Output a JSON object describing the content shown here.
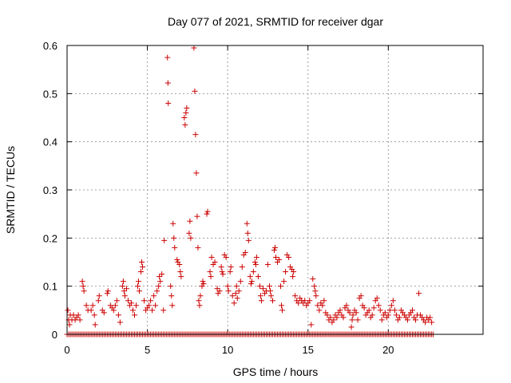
{
  "chart_data": {
    "type": "scatter",
    "title": "Day 077 of 2021, SRMTID for receiver dgar",
    "xlabel": "GPS time / hours",
    "ylabel": "SRMTID / TECUs",
    "xlim": [
      0,
      25.9
    ],
    "ylim": [
      0,
      0.6
    ],
    "xticks": [
      0,
      5,
      10,
      15,
      20
    ],
    "yticks": [
      0,
      0.1,
      0.2,
      0.3,
      0.4,
      0.5,
      0.6
    ],
    "xtick_labels": [
      "0",
      "5",
      "10",
      "15",
      "20"
    ],
    "ytick_labels": [
      "0",
      "0.1",
      "0.2",
      "0.3",
      "0.4",
      "0.5",
      "0.6"
    ],
    "grid": true,
    "marker": "+",
    "marker_color": "#cc0000",
    "baseline_zero": {
      "x_start": 0,
      "x_end": 22.8,
      "x_step": 0.1
    },
    "series": [
      {
        "name": "SRMTID",
        "points": [
          [
            0.05,
            0.05
          ],
          [
            0.1,
            0.03
          ],
          [
            0.15,
            0.02
          ],
          [
            0.2,
            0.04
          ],
          [
            0.3,
            0.03
          ],
          [
            0.4,
            0.04
          ],
          [
            0.5,
            0.03
          ],
          [
            0.6,
            0.035
          ],
          [
            0.7,
            0.04
          ],
          [
            0.8,
            0.03
          ],
          [
            0.95,
            0.11
          ],
          [
            1.0,
            0.1
          ],
          [
            1.05,
            0.09
          ],
          [
            1.2,
            0.06
          ],
          [
            1.3,
            0.05
          ],
          [
            1.5,
            0.05
          ],
          [
            1.6,
            0.06
          ],
          [
            1.7,
            0.04
          ],
          [
            1.75,
            0.02
          ],
          [
            1.95,
            0.07
          ],
          [
            2.0,
            0.08
          ],
          [
            2.2,
            0.05
          ],
          [
            2.3,
            0.045
          ],
          [
            2.5,
            0.085
          ],
          [
            2.55,
            0.09
          ],
          [
            2.7,
            0.06
          ],
          [
            2.8,
            0.055
          ],
          [
            2.9,
            0.05
          ],
          [
            3.0,
            0.06
          ],
          [
            3.1,
            0.07
          ],
          [
            3.2,
            0.04
          ],
          [
            3.3,
            0.025
          ],
          [
            3.45,
            0.1
          ],
          [
            3.5,
            0.11
          ],
          [
            3.55,
            0.09
          ],
          [
            3.6,
            0.08
          ],
          [
            3.7,
            0.095
          ],
          [
            3.8,
            0.07
          ],
          [
            3.9,
            0.06
          ],
          [
            4.0,
            0.065
          ],
          [
            4.1,
            0.05
          ],
          [
            4.2,
            0.04
          ],
          [
            4.3,
            0.06
          ],
          [
            4.4,
            0.1
          ],
          [
            4.45,
            0.11
          ],
          [
            4.5,
            0.09
          ],
          [
            4.6,
            0.13
          ],
          [
            4.65,
            0.15
          ],
          [
            4.7,
            0.14
          ],
          [
            4.8,
            0.07
          ],
          [
            4.9,
            0.05
          ],
          [
            5.0,
            0.055
          ],
          [
            5.1,
            0.06
          ],
          [
            5.2,
            0.07
          ],
          [
            5.3,
            0.05
          ],
          [
            5.4,
            0.08
          ],
          [
            5.5,
            0.06
          ],
          [
            5.6,
            0.09
          ],
          [
            5.7,
            0.1
          ],
          [
            5.75,
            0.12
          ],
          [
            5.8,
            0.11
          ],
          [
            5.9,
            0.125
          ],
          [
            6.0,
            0.05
          ],
          [
            6.05,
            0.195
          ],
          [
            6.25,
            0.575
          ],
          [
            6.28,
            0.522
          ],
          [
            6.3,
            0.48
          ],
          [
            6.45,
            0.1
          ],
          [
            6.5,
            0.08
          ],
          [
            6.55,
            0.06
          ],
          [
            6.6,
            0.23
          ],
          [
            6.65,
            0.2
          ],
          [
            6.7,
            0.18
          ],
          [
            6.85,
            0.155
          ],
          [
            6.9,
            0.15
          ],
          [
            7.0,
            0.145
          ],
          [
            7.05,
            0.13
          ],
          [
            7.1,
            0.12
          ],
          [
            7.3,
            0.45
          ],
          [
            7.35,
            0.435
          ],
          [
            7.4,
            0.46
          ],
          [
            7.45,
            0.47
          ],
          [
            7.6,
            0.21
          ],
          [
            7.65,
            0.235
          ],
          [
            7.7,
            0.2
          ],
          [
            7.9,
            0.595
          ],
          [
            7.95,
            0.505
          ],
          [
            8.0,
            0.415
          ],
          [
            8.05,
            0.335
          ],
          [
            8.1,
            0.245
          ],
          [
            8.15,
            0.18
          ],
          [
            8.2,
            0.07
          ],
          [
            8.25,
            0.06
          ],
          [
            8.3,
            0.08
          ],
          [
            8.4,
            0.1
          ],
          [
            8.45,
            0.11
          ],
          [
            8.5,
            0.105
          ],
          [
            8.7,
            0.25
          ],
          [
            8.75,
            0.255
          ],
          [
            8.9,
            0.13
          ],
          [
            8.95,
            0.12
          ],
          [
            9.0,
            0.16
          ],
          [
            9.1,
            0.145
          ],
          [
            9.2,
            0.15
          ],
          [
            9.35,
            0.095
          ],
          [
            9.4,
            0.085
          ],
          [
            9.5,
            0.09
          ],
          [
            9.6,
            0.14
          ],
          [
            9.65,
            0.13
          ],
          [
            9.7,
            0.125
          ],
          [
            9.8,
            0.165
          ],
          [
            9.9,
            0.16
          ],
          [
            10.0,
            0.1
          ],
          [
            10.05,
            0.09
          ],
          [
            10.15,
            0.13
          ],
          [
            10.2,
            0.14
          ],
          [
            10.3,
            0.08
          ],
          [
            10.4,
            0.065
          ],
          [
            10.5,
            0.085
          ],
          [
            10.55,
            0.1
          ],
          [
            10.6,
            0.075
          ],
          [
            10.7,
            0.09
          ],
          [
            10.8,
            0.11
          ],
          [
            10.9,
            0.14
          ],
          [
            11.0,
            0.165
          ],
          [
            11.1,
            0.17
          ],
          [
            11.2,
            0.23
          ],
          [
            11.25,
            0.21
          ],
          [
            11.3,
            0.195
          ],
          [
            11.4,
            0.12
          ],
          [
            11.45,
            0.105
          ],
          [
            11.5,
            0.11
          ],
          [
            11.6,
            0.13
          ],
          [
            11.7,
            0.15
          ],
          [
            11.75,
            0.145
          ],
          [
            11.8,
            0.16
          ],
          [
            11.9,
            0.12
          ],
          [
            12.0,
            0.1
          ],
          [
            12.05,
            0.08
          ],
          [
            12.1,
            0.07
          ],
          [
            12.2,
            0.095
          ],
          [
            12.3,
            0.085
          ],
          [
            12.4,
            0.09
          ],
          [
            12.5,
            0.145
          ],
          [
            12.6,
            0.1
          ],
          [
            12.65,
            0.09
          ],
          [
            12.7,
            0.08
          ],
          [
            12.8,
            0.07
          ],
          [
            12.9,
            0.175
          ],
          [
            12.95,
            0.18
          ],
          [
            13.0,
            0.16
          ],
          [
            13.1,
            0.15
          ],
          [
            13.2,
            0.155
          ],
          [
            13.3,
            0.1
          ],
          [
            13.35,
            0.06
          ],
          [
            13.4,
            0.05
          ],
          [
            13.5,
            0.11
          ],
          [
            13.6,
            0.13
          ],
          [
            13.7,
            0.165
          ],
          [
            13.8,
            0.16
          ],
          [
            13.9,
            0.14
          ],
          [
            14.0,
            0.135
          ],
          [
            14.05,
            0.12
          ],
          [
            14.1,
            0.13
          ],
          [
            14.2,
            0.08
          ],
          [
            14.3,
            0.07
          ],
          [
            14.4,
            0.065
          ],
          [
            14.5,
            0.075
          ],
          [
            14.6,
            0.07
          ],
          [
            14.7,
            0.065
          ],
          [
            14.8,
            0.07
          ],
          [
            14.9,
            0.06
          ],
          [
            15.0,
            0.065
          ],
          [
            15.1,
            0.07
          ],
          [
            15.2,
            0.02
          ],
          [
            15.3,
            0.115
          ],
          [
            15.4,
            0.1
          ],
          [
            15.45,
            0.09
          ],
          [
            15.5,
            0.08
          ],
          [
            15.6,
            0.06
          ],
          [
            15.7,
            0.05
          ],
          [
            15.8,
            0.065
          ],
          [
            15.9,
            0.06
          ],
          [
            16.0,
            0.07
          ],
          [
            16.1,
            0.045
          ],
          [
            16.2,
            0.04
          ],
          [
            16.3,
            0.03
          ],
          [
            16.4,
            0.035
          ],
          [
            16.5,
            0.025
          ],
          [
            16.6,
            0.03
          ],
          [
            16.7,
            0.04
          ],
          [
            16.8,
            0.035
          ],
          [
            16.9,
            0.045
          ],
          [
            17.0,
            0.05
          ],
          [
            17.1,
            0.04
          ],
          [
            17.2,
            0.035
          ],
          [
            17.3,
            0.055
          ],
          [
            17.4,
            0.06
          ],
          [
            17.5,
            0.05
          ],
          [
            17.6,
            0.045
          ],
          [
            17.7,
            0.015
          ],
          [
            17.75,
            0.03
          ],
          [
            17.8,
            0.04
          ],
          [
            17.9,
            0.05
          ],
          [
            18.0,
            0.045
          ],
          [
            18.1,
            0.03
          ],
          [
            18.2,
            0.075
          ],
          [
            18.3,
            0.08
          ],
          [
            18.4,
            0.06
          ],
          [
            18.5,
            0.055
          ],
          [
            18.6,
            0.04
          ],
          [
            18.7,
            0.045
          ],
          [
            18.8,
            0.05
          ],
          [
            18.9,
            0.035
          ],
          [
            19.0,
            0.04
          ],
          [
            19.1,
            0.055
          ],
          [
            19.2,
            0.07
          ],
          [
            19.3,
            0.075
          ],
          [
            19.4,
            0.06
          ],
          [
            19.5,
            0.05
          ],
          [
            19.6,
            0.03
          ],
          [
            19.7,
            0.04
          ],
          [
            19.8,
            0.045
          ],
          [
            19.9,
            0.035
          ],
          [
            20.0,
            0.04
          ],
          [
            20.1,
            0.05
          ],
          [
            20.2,
            0.06
          ],
          [
            20.3,
            0.07
          ],
          [
            20.4,
            0.05
          ],
          [
            20.5,
            0.04
          ],
          [
            20.6,
            0.03
          ],
          [
            20.7,
            0.035
          ],
          [
            20.8,
            0.05
          ],
          [
            20.9,
            0.045
          ],
          [
            21.0,
            0.04
          ],
          [
            21.1,
            0.035
          ],
          [
            21.2,
            0.03
          ],
          [
            21.3,
            0.04
          ],
          [
            21.4,
            0.045
          ],
          [
            21.5,
            0.05
          ],
          [
            21.6,
            0.035
          ],
          [
            21.7,
            0.03
          ],
          [
            21.8,
            0.04
          ],
          [
            21.9,
            0.085
          ],
          [
            22.0,
            0.04
          ],
          [
            22.1,
            0.035
          ],
          [
            22.2,
            0.03
          ],
          [
            22.3,
            0.025
          ],
          [
            22.4,
            0.035
          ],
          [
            22.5,
            0.03
          ],
          [
            22.6,
            0.035
          ],
          [
            22.7,
            0.025
          ]
        ]
      }
    ]
  }
}
